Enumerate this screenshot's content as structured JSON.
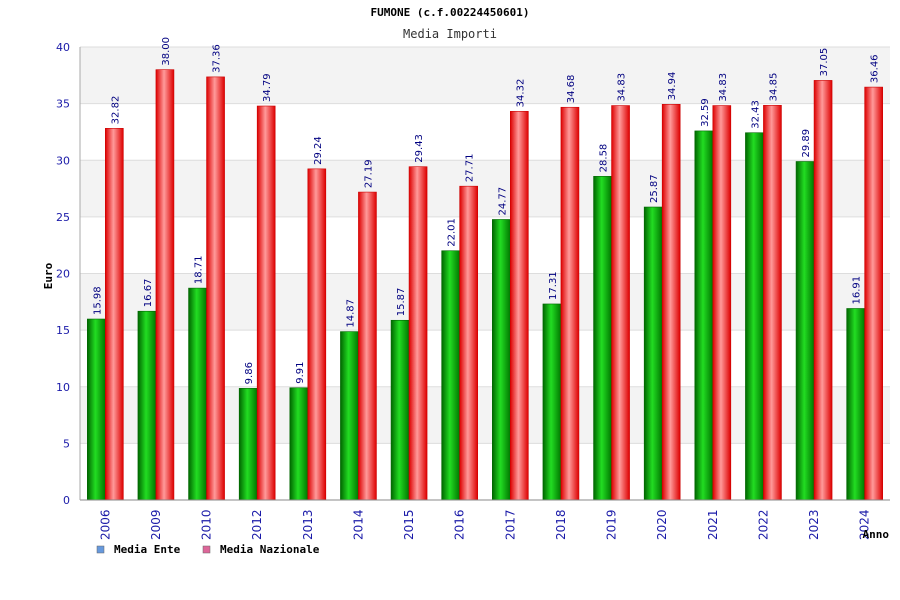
{
  "header": {
    "title": "FUMONE (c.f.00224450601)",
    "subtitle": "Media Importi"
  },
  "chart_data": {
    "type": "bar",
    "categories": [
      "2006",
      "2009",
      "2010",
      "2012",
      "2013",
      "2014",
      "2015",
      "2016",
      "2017",
      "2018",
      "2019",
      "2020",
      "2021",
      "2022",
      "2023",
      "2024"
    ],
    "series": [
      {
        "name": "Media Ente",
        "color": "#00aa00",
        "legend_color": "#6699dd",
        "values": [
          15.98,
          16.67,
          18.71,
          9.86,
          9.91,
          14.87,
          15.87,
          22.01,
          24.77,
          17.31,
          28.58,
          25.87,
          32.59,
          32.43,
          29.89,
          16.91
        ]
      },
      {
        "name": "Media Nazionale",
        "color": "#ee1111",
        "legend_color": "#dd6699",
        "values": [
          32.82,
          38.0,
          37.36,
          34.79,
          29.24,
          27.19,
          29.43,
          27.71,
          34.32,
          34.68,
          34.83,
          34.94,
          34.83,
          34.85,
          37.05,
          36.46
        ]
      }
    ],
    "value_labels": [
      [
        "15.98",
        "16.67",
        "18.71",
        "9.86",
        "9.91",
        "14.87",
        "15.87",
        "22.01",
        "24.77",
        "17.31",
        "28.58",
        "25.87",
        "32.59",
        "32.43",
        "29.89",
        "16.91"
      ],
      [
        "32.82",
        "38.00",
        "37.36",
        "34.79",
        "29.24",
        "27.19",
        "29.43",
        "27.71",
        "34.32",
        "34.68",
        "34.83",
        "34.94",
        "34.83",
        "34.85",
        "37.05",
        "36.46"
      ]
    ],
    "xlabel": "Anno",
    "ylabel": "Euro",
    "ylim": [
      0,
      40
    ],
    "yticks": [
      0,
      5,
      10,
      15,
      20,
      25,
      30,
      35,
      40
    ],
    "grid": true,
    "legend": "bottom-left"
  }
}
